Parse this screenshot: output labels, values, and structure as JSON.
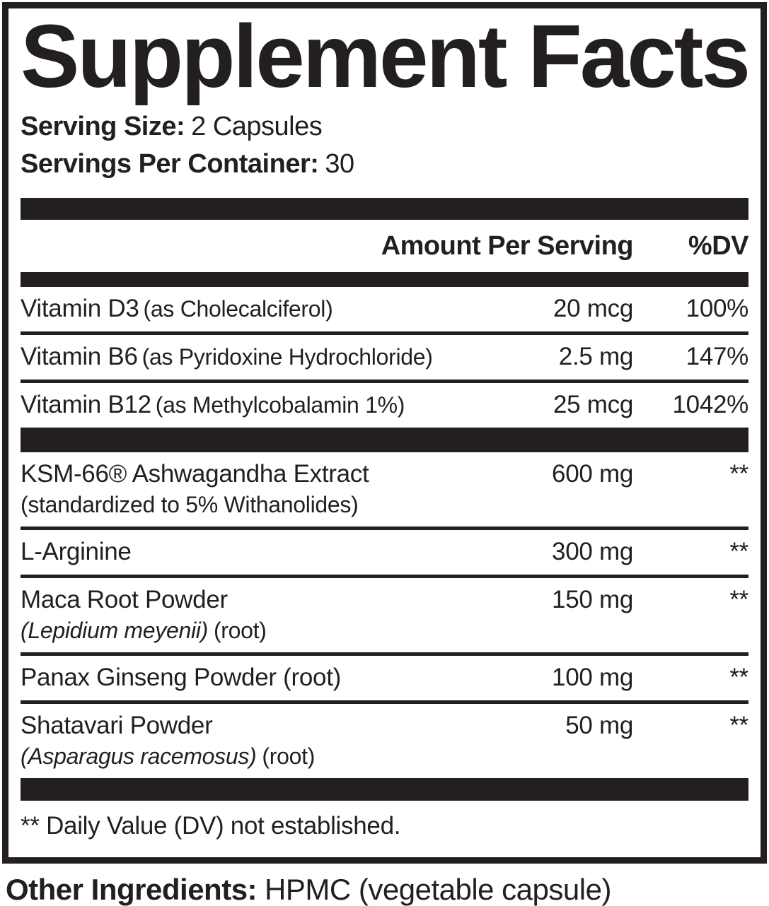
{
  "label": {
    "title": "Supplement Facts",
    "serving_size_label": "Serving Size:",
    "serving_size_value": "2 Capsules",
    "servings_per_container_label": "Servings Per Container:",
    "servings_per_container_value": "30",
    "header": {
      "amount": "Amount Per Serving",
      "dv": "%DV"
    },
    "rows": [
      {
        "name": "Vitamin D3",
        "name_detail": "(as Cholecalciferol)",
        "amount": "20 mcg",
        "dv": "100%"
      },
      {
        "name": "Vitamin B6",
        "name_detail": "(as Pyridoxine Hydrochloride)",
        "amount": "2.5 mg",
        "dv": "147%"
      },
      {
        "name": "Vitamin B12",
        "name_detail": "(as Methylcobalamin 1%)",
        "amount": "25 mcg",
        "dv": "1042%"
      },
      {
        "name": "KSM-66® Ashwagandha Extract",
        "subline": "(standardized to 5% Withanolides)",
        "amount": "600 mg",
        "dv": "**"
      },
      {
        "name": "L-Arginine",
        "amount": "300 mg",
        "dv": "**"
      },
      {
        "name": "Maca Root Powder",
        "subline_italic": "(Lepidium meyenii)",
        "subline_plain": "(root)",
        "amount": "150 mg",
        "dv": "**"
      },
      {
        "name": "Panax Ginseng Powder (root)",
        "amount": "100 mg",
        "dv": "**"
      },
      {
        "name": "Shatavari Powder",
        "subline_italic": "(Asparagus racemosus)",
        "subline_plain": "(root)",
        "amount": "50 mg",
        "dv": "**"
      }
    ],
    "footnote": "** Daily Value (DV) not established.",
    "other_ingredients_label": "Other Ingredients:",
    "other_ingredients_value": "HPMC (vegetable capsule)"
  },
  "colors": {
    "ink": "#231f20",
    "background": "#ffffff"
  }
}
